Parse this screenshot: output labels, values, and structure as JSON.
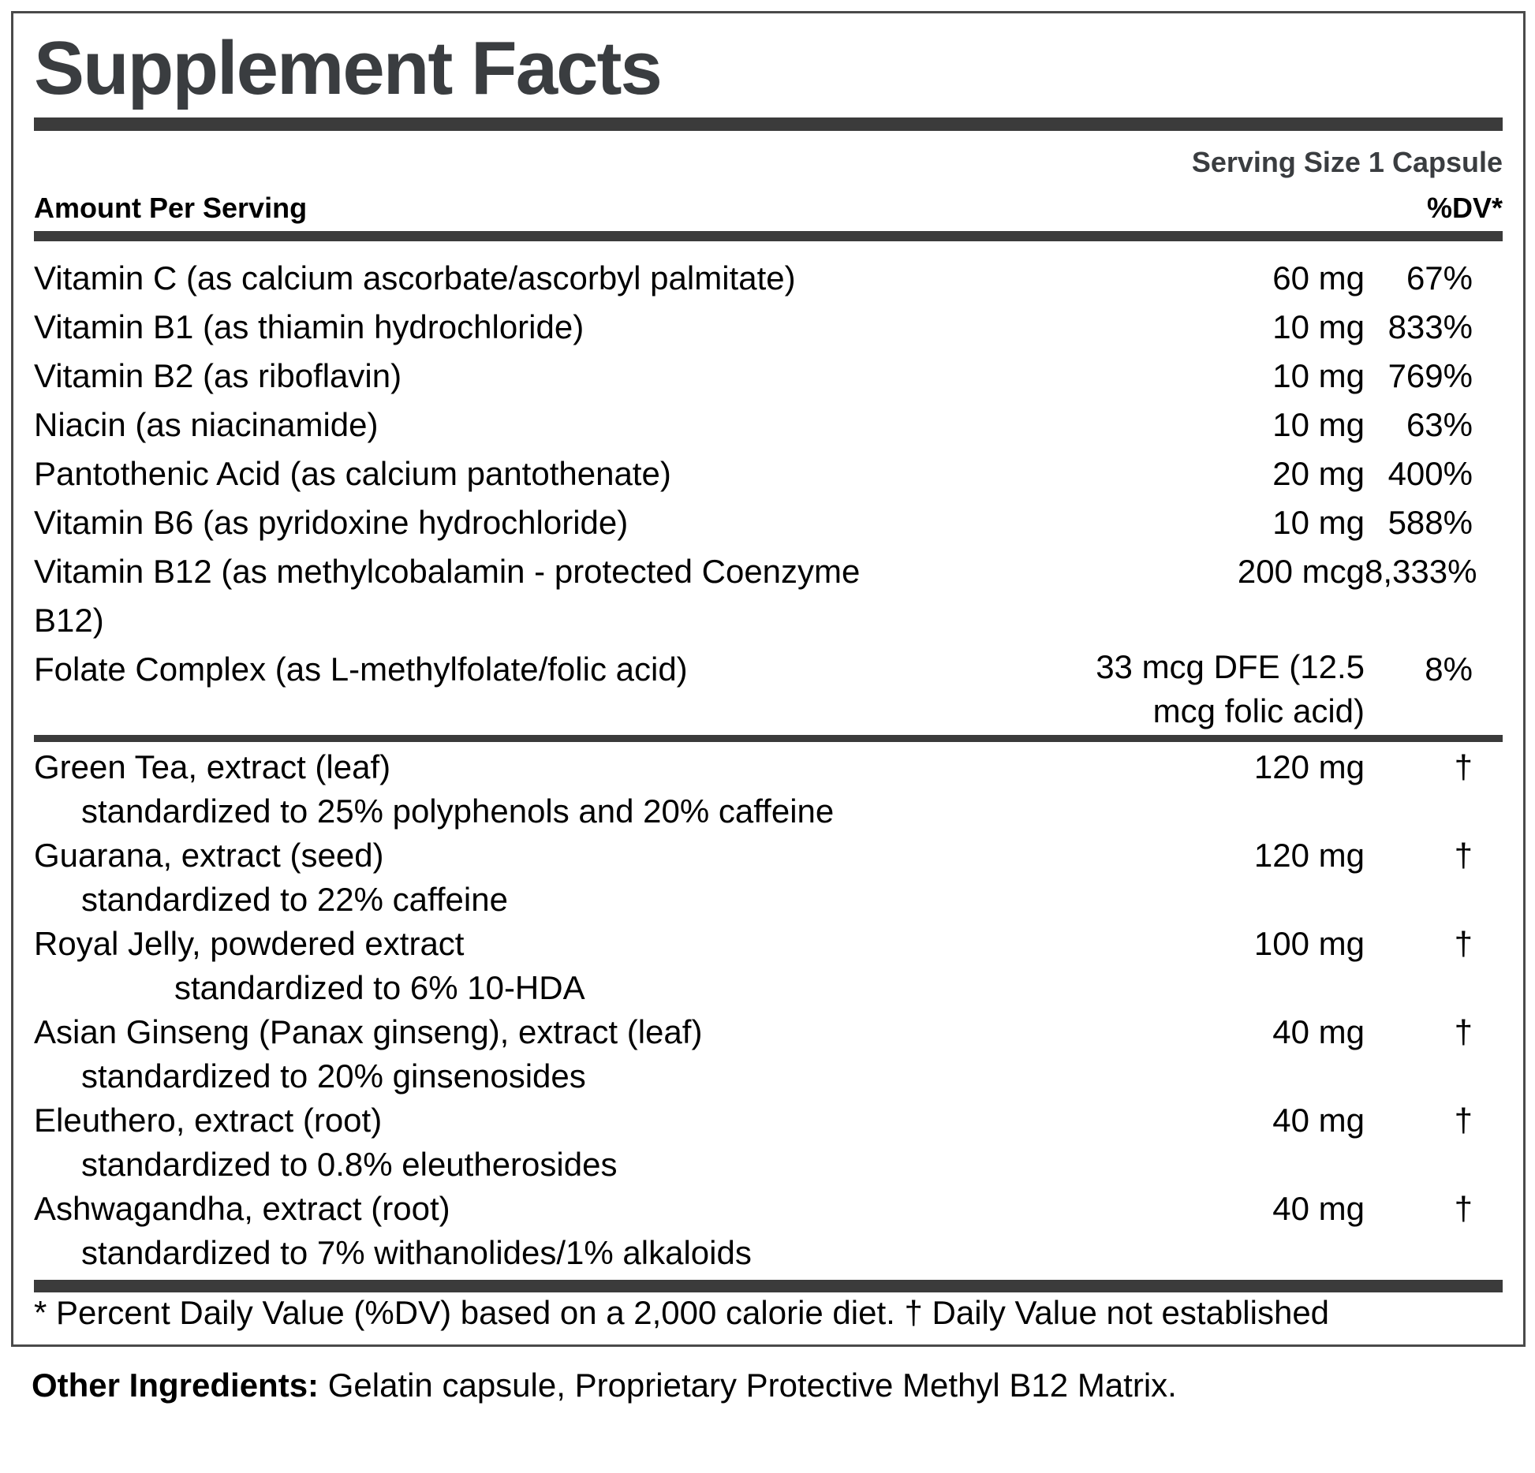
{
  "panel": {
    "title": "Supplement Facts",
    "serving_size": "Serving Size 1 Capsule",
    "columns": {
      "amount_header": "Amount Per Serving",
      "dv_header": "%DV*"
    },
    "vitamin_rows": [
      {
        "name": "Vitamin C (as calcium ascorbate/ascorbyl palmitate)",
        "amount": "60 mg",
        "dv": "67%"
      },
      {
        "name": "Vitamin B1 (as thiamin hydrochloride)",
        "amount": "10 mg",
        "dv": "833%"
      },
      {
        "name": "Vitamin B2 (as riboflavin)",
        "amount": "10 mg",
        "dv": "769%"
      },
      {
        "name": "Niacin (as niacinamide)",
        "amount": "10 mg",
        "dv": "63%"
      },
      {
        "name": "Pantothenic Acid (as calcium pantothenate)",
        "amount": "20 mg",
        "dv": "400%"
      },
      {
        "name": "Vitamin B6 (as pyridoxine hydrochloride)",
        "amount": "10 mg",
        "dv": "588%"
      },
      {
        "name": "Vitamin B12 (as methylcobalamin - protected Coenzyme\nB12)",
        "amount": "200 mcg",
        "dv": "8,333%"
      },
      {
        "name": "Folate Complex (as L-methylfolate/folic acid)",
        "amount": "33 mcg DFE (12.5\nmcg folic acid)",
        "dv": "8%",
        "amount_wraps": true
      }
    ],
    "herb_rows": [
      {
        "name": "Green Tea, extract (leaf)",
        "amount": "120 mg",
        "dv": "†",
        "sub": "standardized to 25% polyphenols and 20% caffeine",
        "sub_indent": "normal"
      },
      {
        "name": "Guarana, extract (seed)",
        "amount": "120 mg",
        "dv": "†",
        "sub": "standardized to 22% caffeine",
        "sub_indent": "normal"
      },
      {
        "name": "Royal Jelly, powdered extract",
        "amount": "100 mg",
        "dv": "†",
        "sub": "standardized to 6% 10-HDA",
        "sub_indent": "large"
      },
      {
        "name": "Asian Ginseng (Panax ginseng), extract (leaf)",
        "amount": "40 mg",
        "dv": "†",
        "sub": "standardized to 20% ginsenosides",
        "sub_indent": "normal"
      },
      {
        "name": "Eleuthero, extract (root)",
        "amount": "40 mg",
        "dv": "†",
        "sub": "standardized to 0.8% eleutherosides",
        "sub_indent": "normal"
      },
      {
        "name": "Ashwagandha, extract (root)",
        "amount": "40 mg",
        "dv": "†",
        "sub": "standardized to 7% withanolides/1% alkaloids",
        "sub_indent": "normal"
      }
    ],
    "footnote": "* Percent Daily Value (%DV) based on a 2,000 calorie diet. † Daily Value not established",
    "other_ingredients_label": "Other Ingredients:",
    "other_ingredients_text": " Gelatin capsule, Proprietary Protective Methyl B12 Matrix."
  },
  "colors": {
    "accent_text": "#3a3d40",
    "divider_bars": "#3b3b3b",
    "body_text": "#000000",
    "box_border": "#4a4a4a",
    "background": "#ffffff"
  }
}
